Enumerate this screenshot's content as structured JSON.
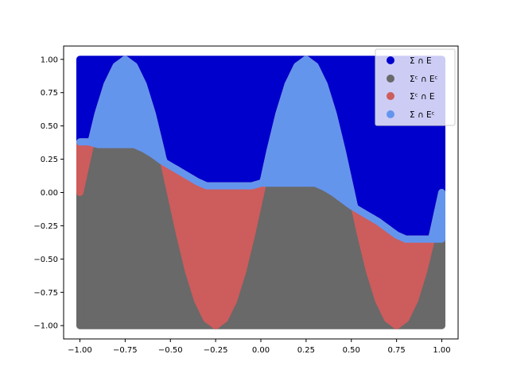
{
  "chart_data": {
    "type": "area",
    "title": "",
    "xlabel": "",
    "ylabel": "",
    "xlim": [
      -1.09,
      1.09
    ],
    "ylim": [
      -1.1,
      1.1
    ],
    "x_ticks": [
      -1.0,
      -0.75,
      -0.5,
      -0.25,
      0.0,
      0.25,
      0.5,
      0.75,
      1.0
    ],
    "x_tick_labels": [
      "−1.00",
      "−0.75",
      "−0.50",
      "−0.25",
      "0.00",
      "0.25",
      "0.50",
      "0.75",
      "1.00"
    ],
    "y_ticks": [
      1.0,
      0.75,
      0.5,
      0.25,
      0.0,
      -0.25,
      -0.5,
      -0.75,
      -1.0
    ],
    "y_tick_labels": [
      "1.00",
      "0.75",
      "0.50",
      "0.25",
      "0.00",
      "−0.25",
      "−0.50",
      "−0.75",
      "−1.00"
    ],
    "grid": false,
    "legend_position": "top-right",
    "domain": {
      "x": [
        -1.0,
        1.0
      ],
      "y": [
        -1.0,
        1.0
      ]
    },
    "curves": {
      "sigma_boundary": {
        "x": [
          -1.0,
          -0.95,
          -0.9,
          -0.85,
          -0.8,
          -0.75,
          -0.7,
          -0.65,
          -0.6,
          -0.55,
          -0.5,
          -0.45,
          -0.4,
          -0.35,
          -0.3,
          -0.25,
          -0.2,
          -0.15,
          -0.1,
          -0.05,
          0.0,
          0.05,
          0.1,
          0.15,
          0.2,
          0.25,
          0.3,
          0.35,
          0.4,
          0.45,
          0.5,
          0.55,
          0.6,
          0.65,
          0.7,
          0.75,
          0.8,
          0.85,
          0.9,
          0.95,
          1.0
        ],
        "y": [
          0.0,
          0.31,
          0.59,
          0.81,
          0.95,
          1.0,
          0.95,
          0.81,
          0.59,
          0.31,
          0.0,
          -0.31,
          -0.59,
          -0.81,
          -0.95,
          -1.0,
          -0.95,
          -0.81,
          -0.59,
          -0.31,
          0.0,
          0.31,
          0.59,
          0.81,
          0.95,
          1.0,
          0.95,
          0.81,
          0.59,
          0.31,
          0.0,
          -0.31,
          -0.59,
          -0.81,
          -0.95,
          -1.0,
          -0.95,
          -0.81,
          -0.59,
          -0.31,
          0.0
        ]
      },
      "e_boundary": {
        "x": [
          -1.0,
          -0.95,
          -0.9,
          -0.85,
          -0.8,
          -0.75,
          -0.7,
          -0.65,
          -0.6,
          -0.55,
          -0.5,
          -0.45,
          -0.4,
          -0.35,
          -0.3,
          -0.25,
          -0.2,
          -0.15,
          -0.1,
          -0.05,
          0.0,
          0.05,
          0.1,
          0.15,
          0.2,
          0.25,
          0.3,
          0.35,
          0.4,
          0.45,
          0.5,
          0.55,
          0.6,
          0.65,
          0.7,
          0.75,
          0.8,
          0.85,
          0.9,
          0.95,
          1.0
        ],
        "y": [
          0.38,
          0.38,
          0.36,
          0.36,
          0.36,
          0.36,
          0.36,
          0.33,
          0.29,
          0.24,
          0.2,
          0.16,
          0.12,
          0.08,
          0.05,
          0.05,
          0.05,
          0.05,
          0.05,
          0.05,
          0.07,
          0.07,
          0.07,
          0.07,
          0.07,
          0.07,
          0.07,
          0.04,
          0.0,
          -0.05,
          -0.1,
          -0.14,
          -0.18,
          -0.22,
          -0.27,
          -0.32,
          -0.35,
          -0.35,
          -0.35,
          -0.35,
          -0.35
        ]
      }
    },
    "series": [
      {
        "name": "Σ ∩ E",
        "color": "#0000cd"
      },
      {
        "name": "Σᶜ ∩ Eᶜ",
        "color": "#696969"
      },
      {
        "name": "Σᶜ ∩ E",
        "color": "#cd5c5c"
      },
      {
        "name": "Σ ∩ Eᶜ",
        "color": "#6495ed"
      }
    ]
  }
}
